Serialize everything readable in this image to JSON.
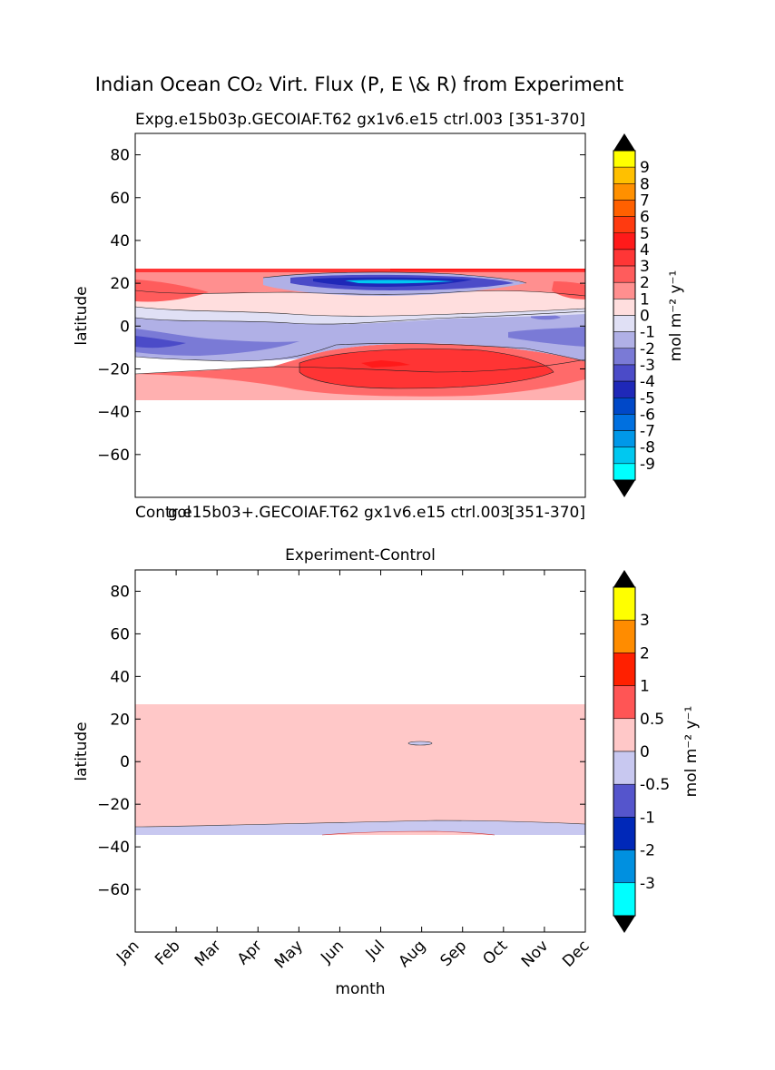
{
  "figure": {
    "suptitle": "Indian Ocean CO₂ Virt. Flux (P, E \\& R) from Experiment",
    "subplot_labels": {
      "top_left": "Expg.e15b03p.GECOIAF.T62 gx1v6.e15 ctrl.003",
      "top_right": "[351-370]",
      "bottom_left": "Control",
      "bottom_mid": "g.e15b03+.GECOIAF.T62 gx1v6.e15 ctrl.003",
      "bottom_right": "[351-370]"
    }
  },
  "chart_data": [
    {
      "type": "contourf",
      "title": "Expg.e15b03p.GECOIAF.T62 gx1v6.e15 ctrl.003",
      "xlabel": "",
      "ylabel": "latitude",
      "ylim": [
        -80,
        90
      ],
      "yticks": [
        80,
        60,
        40,
        20,
        0,
        -20,
        -40,
        -60
      ],
      "ytick_labels": [
        "80",
        "60",
        "40",
        "20",
        "0",
        "−20",
        "−40",
        "−60"
      ],
      "xlim": [
        1,
        12
      ],
      "data_lat_range": [
        -34,
        27
      ],
      "colorbar": {
        "label": "mol m⁻² y⁻¹",
        "levels": [
          "9",
          "8",
          "7",
          "6",
          "5",
          "4",
          "3",
          "2",
          "1",
          "0",
          "-1",
          "-2",
          "-3",
          "-4",
          "-5",
          "-6",
          "-7",
          "-8",
          "-9"
        ],
        "colors": [
          "#ffff00",
          "#ffc000",
          "#ff9000",
          "#ff6000",
          "#ff3a10",
          "#ff1a1a",
          "#ff3636",
          "#ff5c5c",
          "#ff8f8f",
          "#ffdede",
          "#e0e0f5",
          "#b0b0e6",
          "#7a7ad6",
          "#4b4bc8",
          "#1f28b8",
          "#0048c8",
          "#0070e0",
          "#0098e8",
          "#00c8f0",
          "#00ffff"
        ]
      },
      "bands": [
        {
          "name": "north-edge-strip",
          "lat": [
            23,
            27
          ],
          "level": "2"
        },
        {
          "name": "north-arabian-sea-high",
          "lat": [
            5,
            23
          ],
          "level": "1"
        },
        {
          "name": "equatorial-pale",
          "lat": [
            0,
            8
          ],
          "level": "0"
        },
        {
          "name": "central-negative",
          "lat": [
            -12,
            0
          ],
          "level": "-1"
        },
        {
          "name": "west-negative-core",
          "lat": [
            -12,
            -3
          ],
          "level": "-3"
        },
        {
          "name": "southern-positive",
          "lat": [
            -24,
            -13
          ],
          "level": "2"
        },
        {
          "name": "southern-max",
          "lat": [
            -17,
            -20
          ],
          "level": "3"
        },
        {
          "name": "south-edge",
          "lat": [
            -34,
            -24
          ],
          "level": "1"
        },
        {
          "name": "bay-of-bengal-minimum",
          "lat": [
            18,
            24
          ],
          "level": "-9"
        }
      ]
    },
    {
      "type": "contourf",
      "title": "Experiment-Control",
      "xlabel": "month",
      "ylabel": "latitude",
      "ylim": [
        -80,
        90
      ],
      "yticks": [
        80,
        60,
        40,
        20,
        0,
        -20,
        -40,
        -60
      ],
      "ytick_labels": [
        "80",
        "60",
        "40",
        "20",
        "0",
        "−20",
        "−40",
        "−60"
      ],
      "xlim": [
        1,
        12
      ],
      "categories": [
        "Jan",
        "Feb",
        "Mar",
        "Apr",
        "May",
        "Jun",
        "Jul",
        "Aug",
        "Sep",
        "Oct",
        "Nov",
        "Dec"
      ],
      "data_lat_range": [
        -34,
        27
      ],
      "colorbar": {
        "label": "mol m⁻² y⁻¹",
        "levels": [
          "3",
          "2",
          "1",
          "0.5",
          "0",
          "-0.5",
          "-1",
          "-2",
          "-3"
        ],
        "colors": [
          "#ffff00",
          "#ff8c00",
          "#ff2000",
          "#ff5555",
          "#ffc8c8",
          "#c8c8f0",
          "#5555cc",
          "#0028b8",
          "#0090e0",
          "#00ffff"
        ]
      },
      "bands": [
        {
          "name": "difference-positive-main",
          "lat": [
            -30,
            27
          ],
          "level": "0"
        },
        {
          "name": "difference-negative-south",
          "lat": [
            -34,
            -29
          ],
          "level": "-0.5"
        },
        {
          "name": "difference-small-negative-blob",
          "lat": [
            8.5,
            9.5
          ],
          "month": 8,
          "level": "-0.5"
        }
      ]
    }
  ]
}
